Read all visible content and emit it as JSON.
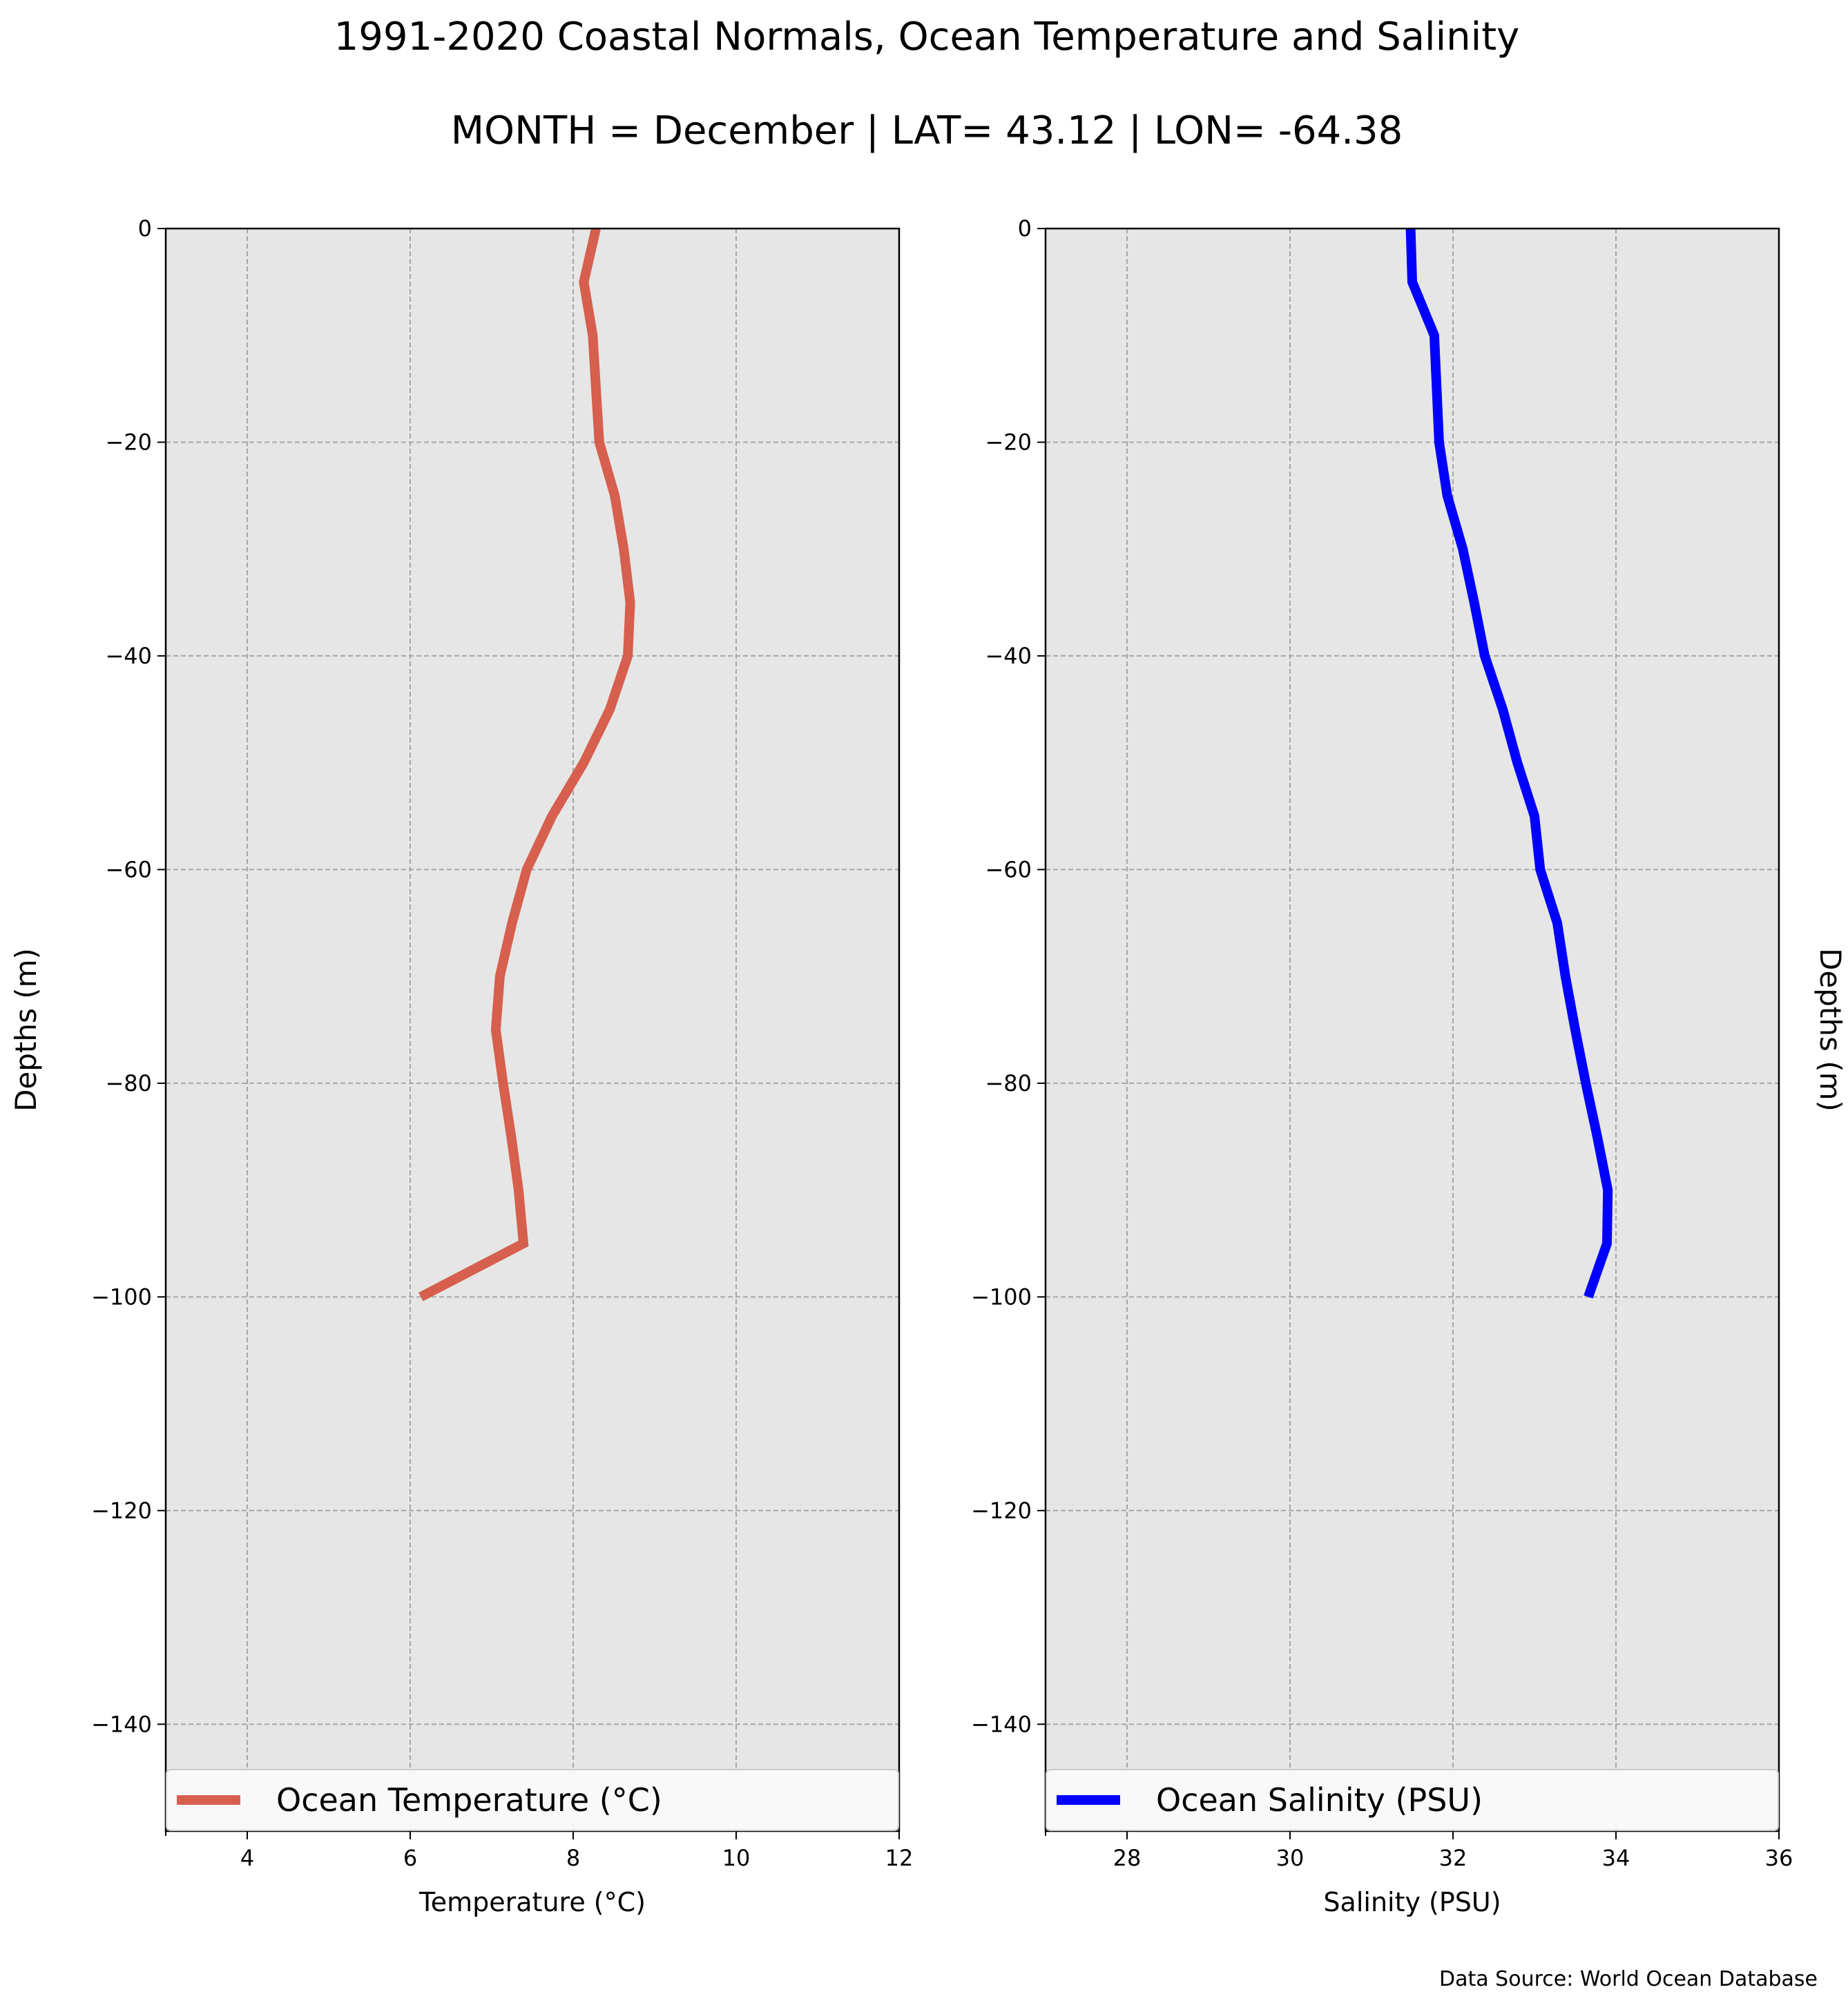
{
  "figure": {
    "title": "1991-2020 Coastal Normals, Ocean Temperature and Salinity",
    "subtitle": "MONTH = December | LAT= 43.12 | LON= -64.38",
    "source": "Data Source: World Ocean Database"
  },
  "chart_data": [
    {
      "type": "line",
      "xlabel": "Temperature (°C)",
      "ylabel": "Depths (m)",
      "ylabel_side": "left",
      "xlim": [
        3,
        12
      ],
      "ylim": [
        -150,
        0
      ],
      "xticks": [
        4,
        6,
        8,
        10,
        12
      ],
      "xtick_labels": [
        "4",
        "6",
        "8",
        "10",
        "12"
      ],
      "yticks": [
        0,
        -20,
        -40,
        -60,
        -80,
        -100,
        -120,
        -140
      ],
      "ytick_labels": [
        "0",
        "−20",
        "−40",
        "−60",
        "−80",
        "−100",
        "−120",
        "−140"
      ],
      "grid": true,
      "legend_position": "bottom",
      "series": [
        {
          "name": "Ocean Temperature (°C)",
          "color": "#d65f4d",
          "x": [
            8.28,
            8.13,
            8.24,
            8.28,
            8.32,
            8.51,
            8.62,
            8.7,
            8.67,
            8.45,
            8.13,
            7.74,
            7.43,
            7.25,
            7.1,
            7.05,
            7.14,
            7.24,
            7.33,
            7.39,
            6.13
          ],
          "y": [
            0,
            -5,
            -10,
            -15,
            -20,
            -25,
            -30,
            -35,
            -40,
            -45,
            -50,
            -55,
            -60,
            -65,
            -70,
            -75,
            -80,
            -85,
            -90,
            -95,
            -100
          ]
        }
      ]
    },
    {
      "type": "line",
      "xlabel": "Salinity (PSU)",
      "ylabel": "Depths (m)",
      "ylabel_side": "right",
      "xlim": [
        27,
        36
      ],
      "ylim": [
        -150,
        0
      ],
      "xticks": [
        28,
        30,
        32,
        34,
        36
      ],
      "xtick_labels": [
        "28",
        "30",
        "32",
        "34",
        "36"
      ],
      "yticks": [
        0,
        -20,
        -40,
        -60,
        -80,
        -100,
        -120,
        -140
      ],
      "ytick_labels": [
        "0",
        "−20",
        "−40",
        "−60",
        "−80",
        "−100",
        "−120",
        "−140"
      ],
      "grid": true,
      "legend_position": "bottom",
      "series": [
        {
          "name": "Ocean Salinity (PSU)",
          "color": "#0000ff",
          "x": [
            31.48,
            31.5,
            31.77,
            31.8,
            31.83,
            31.93,
            32.12,
            32.26,
            32.39,
            32.61,
            32.79,
            33.0,
            33.07,
            33.28,
            33.38,
            33.5,
            33.63,
            33.77,
            33.9,
            33.89,
            33.66
          ],
          "y": [
            0,
            -5,
            -10,
            -15,
            -20,
            -25,
            -30,
            -35,
            -40,
            -45,
            -50,
            -55,
            -60,
            -65,
            -70,
            -75,
            -80,
            -85,
            -90,
            -95,
            -100
          ]
        }
      ]
    }
  ]
}
